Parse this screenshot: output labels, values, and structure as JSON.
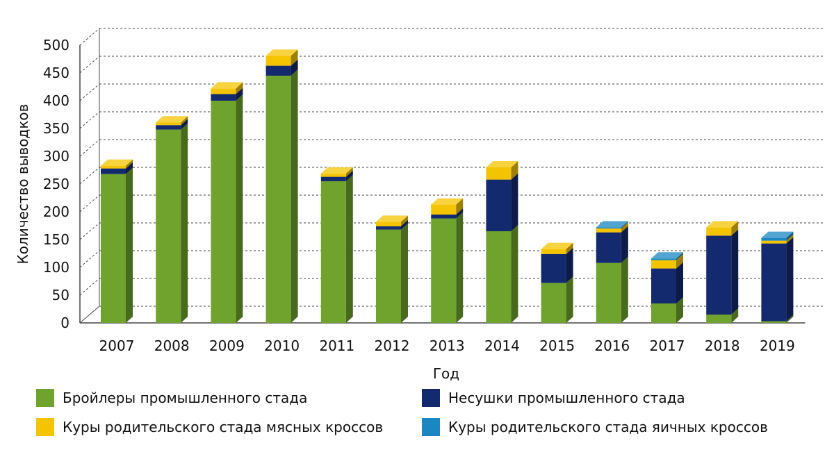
{
  "chart_data": {
    "type": "bar",
    "stacked": true,
    "style": "3d",
    "xlabel": "Год",
    "ylabel": "Количество выводков",
    "ylim": [
      0,
      500
    ],
    "yticks": [
      "0",
      "50",
      "100",
      "150",
      "200",
      "250",
      "300",
      "350",
      "400",
      "450",
      "500"
    ],
    "grid": true,
    "legend_position": "bottom",
    "categories": [
      "2007",
      "2008",
      "2009",
      "2010",
      "2011",
      "2012",
      "2013",
      "2014",
      "2015",
      "2016",
      "2017",
      "2018",
      "2019"
    ],
    "series": [
      {
        "name": "Бройлеры промышленного стада",
        "color": "#6fa32d",
        "values": [
          268,
          348,
          400,
          445,
          255,
          168,
          188,
          165,
          72,
          108,
          35,
          15,
          3
        ]
      },
      {
        "name": "Несушки промышленного стада",
        "color": "#142a6e",
        "values": [
          10,
          8,
          12,
          18,
          8,
          6,
          7,
          93,
          52,
          55,
          63,
          142,
          140
        ]
      },
      {
        "name": "Куры родительского стада мясных кроссов",
        "color": "#f5c400",
        "values": [
          5,
          5,
          10,
          18,
          6,
          8,
          18,
          22,
          9,
          7,
          15,
          15,
          5
        ]
      },
      {
        "name": "Куры родительского стада яичных кроссов",
        "color": "#1a87c2",
        "values": [
          0,
          0,
          0,
          0,
          0,
          0,
          0,
          0,
          0,
          2,
          3,
          0,
          5
        ]
      }
    ]
  }
}
